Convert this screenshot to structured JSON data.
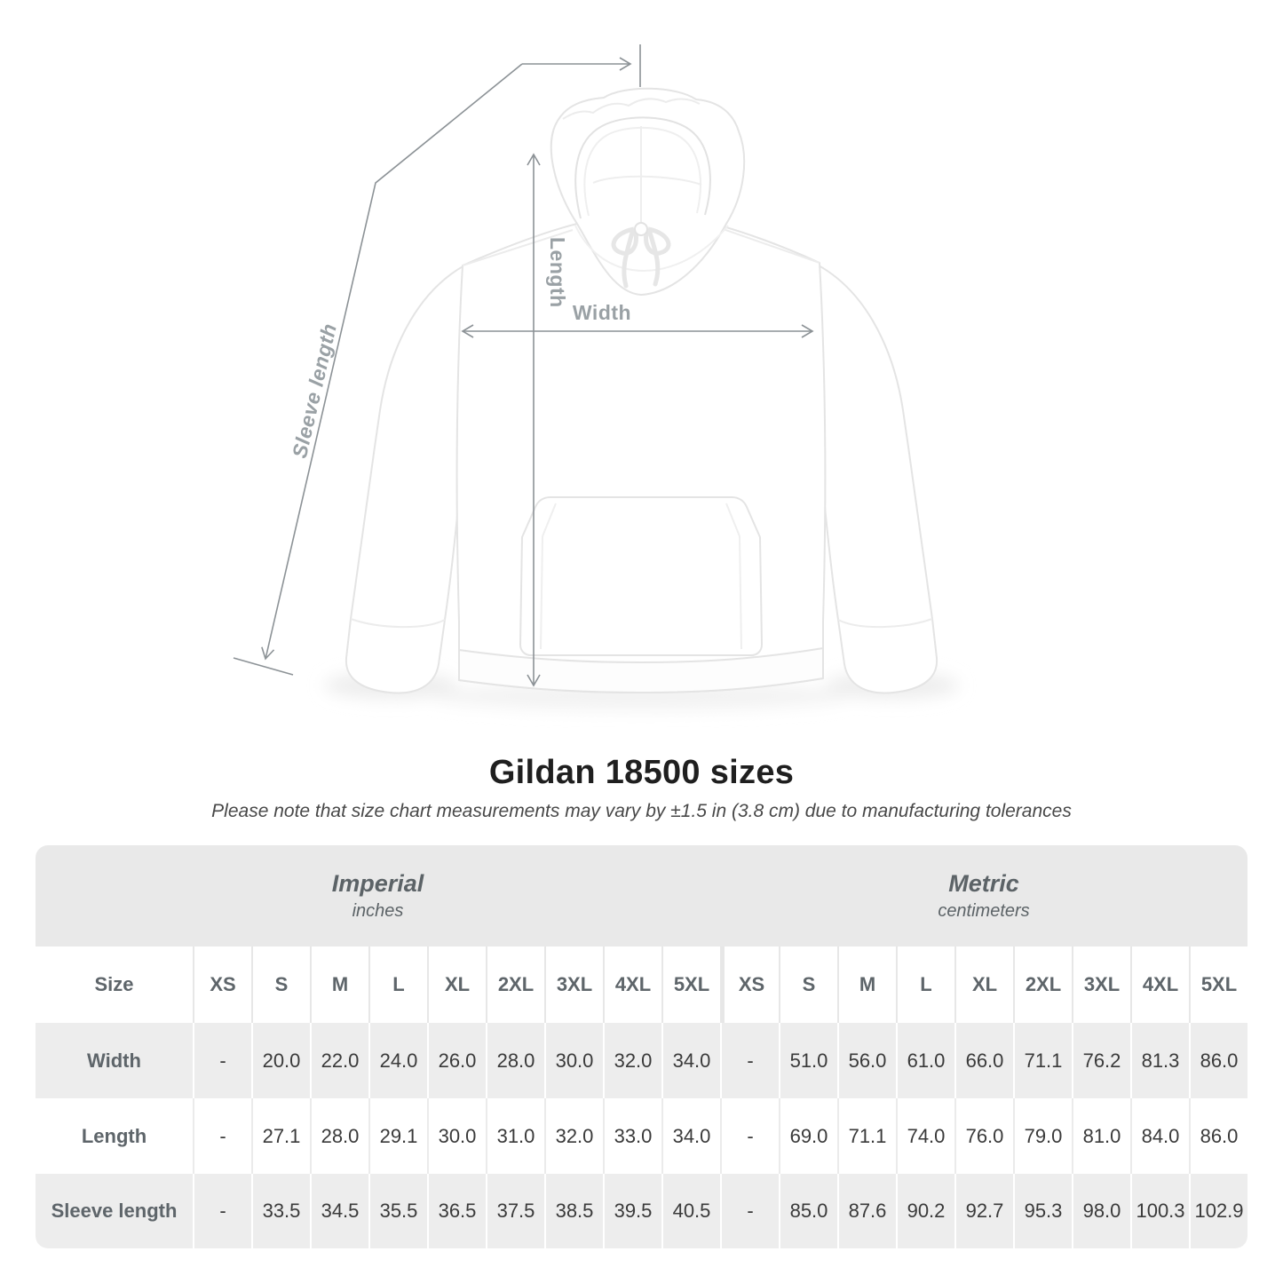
{
  "page": {
    "background": "#ffffff"
  },
  "diagram": {
    "labels": {
      "length": "Length",
      "width": "Width",
      "sleeve": "Sleeve length"
    },
    "line_color": "#8c9296",
    "label_color": "#9aa1a5"
  },
  "heading": {
    "title": "Gildan 18500 sizes",
    "note": "Please note that size chart measurements may vary by ±1.5 in (3.8 cm) due to manufacturing tolerances"
  },
  "table": {
    "band_bg": "#e9e9e9",
    "stripe_bg": "#ededed",
    "unit_groups": [
      {
        "label": "Imperial",
        "sublabel": "inches"
      },
      {
        "label": "Metric",
        "sublabel": "centimeters"
      }
    ],
    "size_header": "Size",
    "sizes": [
      "XS",
      "S",
      "M",
      "L",
      "XL",
      "2XL",
      "3XL",
      "4XL",
      "5XL"
    ],
    "rows": [
      {
        "label": "Width",
        "imperial": [
          "-",
          "20.0",
          "22.0",
          "24.0",
          "26.0",
          "28.0",
          "30.0",
          "32.0",
          "34.0"
        ],
        "metric": [
          "-",
          "51.0",
          "56.0",
          "61.0",
          "66.0",
          "71.1",
          "76.2",
          "81.3",
          "86.0"
        ]
      },
      {
        "label": "Length",
        "imperial": [
          "-",
          "27.1",
          "28.0",
          "29.1",
          "30.0",
          "31.0",
          "32.0",
          "33.0",
          "34.0"
        ],
        "metric": [
          "-",
          "69.0",
          "71.1",
          "74.0",
          "76.0",
          "79.0",
          "81.0",
          "84.0",
          "86.0"
        ]
      },
      {
        "label": "Sleeve length",
        "imperial": [
          "-",
          "33.5",
          "34.5",
          "35.5",
          "36.5",
          "37.5",
          "38.5",
          "39.5",
          "40.5"
        ],
        "metric": [
          "-",
          "85.0",
          "87.6",
          "90.2",
          "92.7",
          "95.3",
          "98.0",
          "100.3",
          "102.9"
        ]
      }
    ]
  },
  "chart_data": {
    "type": "table",
    "title": "Gildan 18500 sizes",
    "subtitle": "Please note that size chart measurements may vary by ±1.5 in (3.8 cm) due to manufacturing tolerances",
    "column_groups": [
      "Imperial (inches)",
      "Metric (centimeters)"
    ],
    "columns": [
      "Size",
      "XS",
      "S",
      "M",
      "L",
      "XL",
      "2XL",
      "3XL",
      "4XL",
      "5XL",
      "XS",
      "S",
      "M",
      "L",
      "XL",
      "2XL",
      "3XL",
      "4XL",
      "5XL"
    ],
    "rows": [
      [
        "Width",
        null,
        20.0,
        22.0,
        24.0,
        26.0,
        28.0,
        30.0,
        32.0,
        34.0,
        null,
        51.0,
        56.0,
        61.0,
        66.0,
        71.1,
        76.2,
        81.3,
        86.0
      ],
      [
        "Length",
        null,
        27.1,
        28.0,
        29.1,
        30.0,
        31.0,
        32.0,
        33.0,
        34.0,
        null,
        69.0,
        71.1,
        74.0,
        76.0,
        79.0,
        81.0,
        84.0,
        86.0
      ],
      [
        "Sleeve length",
        null,
        33.5,
        34.5,
        35.5,
        36.5,
        37.5,
        38.5,
        39.5,
        40.5,
        null,
        85.0,
        87.6,
        90.2,
        92.7,
        95.3,
        98.0,
        100.3,
        102.9
      ]
    ]
  }
}
